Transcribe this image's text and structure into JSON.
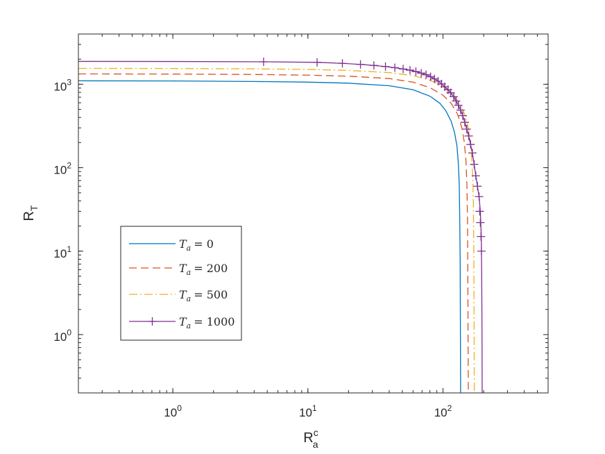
{
  "chart_data": {
    "type": "line",
    "xscale": "log",
    "yscale": "log",
    "xlim": [
      0.2,
      600
    ],
    "ylim": [
      0.2,
      4000
    ],
    "grid": false,
    "xlabel": {
      "main": "R",
      "sup": "c",
      "sub": "a"
    },
    "ylabel": {
      "main": "R",
      "sub": "T"
    },
    "xticks": [
      {
        "value": 1,
        "base": "10",
        "exp": "0"
      },
      {
        "value": 10,
        "base": "10",
        "exp": "1"
      },
      {
        "value": 100,
        "base": "10",
        "exp": "2"
      }
    ],
    "yticks": [
      {
        "value": 1,
        "base": "10",
        "exp": "0"
      },
      {
        "value": 10,
        "base": "10",
        "exp": "1"
      },
      {
        "value": 100,
        "base": "10",
        "exp": "2"
      },
      {
        "value": 1000,
        "base": "10",
        "exp": "3"
      }
    ],
    "legend_position": "lower-left",
    "series": [
      {
        "label_var": "T",
        "label_sub": "a",
        "label_value": "= 0",
        "color": "#0072BD",
        "dash": "",
        "marker": "none",
        "points": [
          [
            0.2,
            1100
          ],
          [
            1,
            1095
          ],
          [
            4,
            1080
          ],
          [
            10,
            1060
          ],
          [
            20,
            1030
          ],
          [
            40,
            960
          ],
          [
            60,
            860
          ],
          [
            80,
            720
          ],
          [
            95,
            590
          ],
          [
            105,
            480
          ],
          [
            115,
            360
          ],
          [
            122,
            260
          ],
          [
            127,
            180
          ],
          [
            130,
            110
          ],
          [
            132,
            60
          ],
          [
            133,
            25
          ],
          [
            134,
            8
          ],
          [
            134.6,
            1
          ],
          [
            135,
            0.2
          ]
        ]
      },
      {
        "label_var": "T",
        "label_sub": "a",
        "label_value": "= 200",
        "color": "#D95319",
        "dash": "11,6",
        "marker": "none",
        "points": [
          [
            0.2,
            1330
          ],
          [
            1,
            1325
          ],
          [
            4,
            1310
          ],
          [
            10,
            1285
          ],
          [
            20,
            1250
          ],
          [
            40,
            1170
          ],
          [
            60,
            1060
          ],
          [
            80,
            910
          ],
          [
            100,
            740
          ],
          [
            115,
            590
          ],
          [
            128,
            440
          ],
          [
            138,
            300
          ],
          [
            144,
            200
          ],
          [
            148,
            120
          ],
          [
            150.5,
            60
          ],
          [
            152,
            20
          ],
          [
            152.8,
            4
          ],
          [
            153.3,
            1
          ],
          [
            154,
            0.2
          ]
        ]
      },
      {
        "label_var": "T",
        "label_sub": "a",
        "label_value": "= 500",
        "color": "#EDB120",
        "dash": "12,4,2,4",
        "marker": "none",
        "points": [
          [
            0.2,
            1550
          ],
          [
            1,
            1545
          ],
          [
            4,
            1530
          ],
          [
            10,
            1505
          ],
          [
            20,
            1465
          ],
          [
            40,
            1380
          ],
          [
            60,
            1270
          ],
          [
            80,
            1120
          ],
          [
            100,
            940
          ],
          [
            120,
            740
          ],
          [
            135,
            560
          ],
          [
            148,
            400
          ],
          [
            156,
            270
          ],
          [
            162,
            160
          ],
          [
            166,
            80
          ],
          [
            168,
            35
          ],
          [
            169.3,
            8
          ],
          [
            170,
            1
          ],
          [
            170.5,
            0.2
          ]
        ]
      },
      {
        "label_var": "T",
        "label_sub": "a",
        "label_value": "= 1000",
        "color": "#7E2F8E",
        "dash": "",
        "marker": "plus",
        "points": [
          [
            0.2,
            1880
          ],
          [
            1,
            1875
          ],
          [
            4.7,
            1860
          ],
          [
            11.7,
            1830
          ],
          [
            18,
            1780
          ],
          [
            24.5,
            1730
          ],
          [
            30.8,
            1680
          ],
          [
            37.5,
            1630
          ],
          [
            44,
            1580
          ],
          [
            50.7,
            1525
          ],
          [
            57,
            1475
          ],
          [
            63,
            1420
          ],
          [
            69,
            1360
          ],
          [
            75,
            1300
          ],
          [
            81,
            1230
          ],
          [
            86.5,
            1160
          ],
          [
            92,
            1090
          ],
          [
            97.6,
            1010
          ],
          [
            103,
            935
          ],
          [
            109,
            860
          ],
          [
            114,
            790
          ],
          [
            120,
            710
          ],
          [
            125,
            630
          ],
          [
            130,
            560
          ],
          [
            135,
            490
          ],
          [
            140,
            420
          ],
          [
            145,
            350
          ],
          [
            150,
            290
          ],
          [
            155,
            240
          ],
          [
            160,
            190
          ],
          [
            165,
            150
          ],
          [
            170,
            110
          ],
          [
            175,
            80
          ],
          [
            180,
            60
          ],
          [
            185,
            45
          ],
          [
            189,
            30
          ],
          [
            192,
            15
          ],
          [
            193.5,
            5
          ],
          [
            194.5,
            1
          ],
          [
            195,
            0.2
          ]
        ],
        "marker_points": [
          [
            4.7,
            1860
          ],
          [
            11.7,
            1830
          ],
          [
            18,
            1780
          ],
          [
            24.5,
            1730
          ],
          [
            30.8,
            1680
          ],
          [
            37.5,
            1630
          ],
          [
            44,
            1580
          ],
          [
            50.7,
            1525
          ],
          [
            57,
            1475
          ],
          [
            63,
            1420
          ],
          [
            69,
            1360
          ],
          [
            75,
            1300
          ],
          [
            81,
            1230
          ],
          [
            86.5,
            1160
          ],
          [
            92,
            1090
          ],
          [
            97.6,
            1010
          ],
          [
            103,
            935
          ],
          [
            109,
            860
          ],
          [
            114,
            790
          ],
          [
            120,
            710
          ],
          [
            125,
            630
          ],
          [
            130,
            560
          ],
          [
            135,
            490
          ],
          [
            140,
            420
          ],
          [
            145,
            350
          ],
          [
            150,
            290
          ],
          [
            155,
            240
          ],
          [
            160,
            190
          ],
          [
            165,
            150
          ],
          [
            170,
            110
          ],
          [
            175,
            80
          ],
          [
            180,
            60
          ],
          [
            185,
            45
          ],
          [
            187,
            30
          ],
          [
            189,
            22
          ],
          [
            191,
            15
          ],
          [
            192.5,
            10
          ]
        ]
      }
    ]
  }
}
